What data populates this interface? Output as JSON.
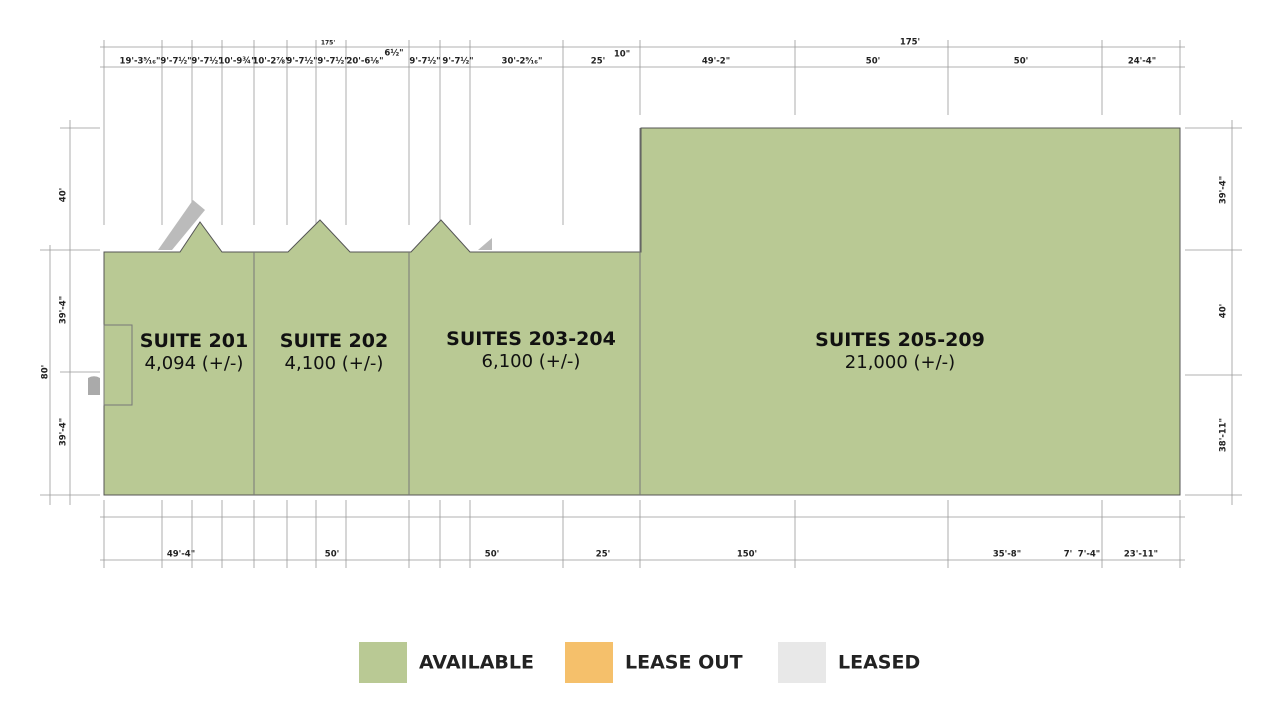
{
  "top_dimensions": {
    "overall": [
      "175'",
      "175'"
    ],
    "small": [
      "6½\"",
      "10\""
    ],
    "segments": [
      "19'-3⁵⁄₁₆\"",
      "9'-7½\"",
      "9'-7½\"",
      "10'-9¾\"",
      "10'-2⅞\"",
      "9'-7½\"",
      "9'-7½\"",
      "20'-6⅛\"",
      "9'-7½\"",
      "9'-7½\"",
      "30'-2⁹⁄₁₆\"",
      "25'",
      "49'-2\"",
      "50'",
      "50'",
      "24'-4\""
    ]
  },
  "left_dimensions": [
    "40'",
    "39'-4\"",
    "80'",
    "39'-4\""
  ],
  "right_dimensions": [
    "39'-4\"",
    "40'",
    "38'-11\""
  ],
  "bottom_dimensions": [
    "49'-4\"",
    "50'",
    "50'",
    "25'",
    "150'",
    "35'-8\"",
    "7'",
    "7'-4\"",
    "23'-11\""
  ],
  "suites": [
    {
      "name": "SUITE 201",
      "area": "4,094 (+/-)"
    },
    {
      "name": "SUITE 202",
      "area": "4,100 (+/-)"
    },
    {
      "name": "SUITES 203-204",
      "area": "6,100 (+/-)"
    },
    {
      "name": "SUITES 205-209",
      "area": "21,000 (+/-)"
    }
  ],
  "legend": [
    {
      "label": "AVAILABLE",
      "color": "#b9c994"
    },
    {
      "label": "LEASE OUT",
      "color": "#f5c06b"
    },
    {
      "label": "LEASED",
      "color": "#e8e8e8"
    }
  ]
}
